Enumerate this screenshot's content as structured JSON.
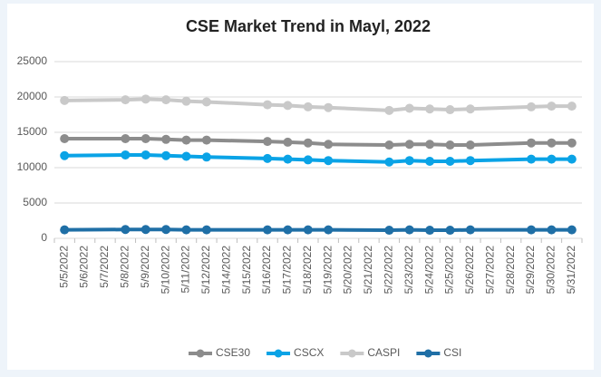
{
  "chart_data": {
    "type": "line",
    "title": "CSE Market Trend in Mayl, 2022",
    "categories": [
      "5/5/2022",
      "5/6/2022",
      "5/7/2022",
      "5/8/2022",
      "5/9/2022",
      "5/10/2022",
      "5/11/2022",
      "5/12/2022",
      "5/14/2022",
      "5/15/2022",
      "5/16/2022",
      "5/17/2022",
      "5/18/2022",
      "5/19/2022",
      "5/20/2022",
      "5/21/2022",
      "5/22/2022",
      "5/23/2022",
      "5/24/2022",
      "5/25/2022",
      "5/26/2022",
      "5/27/2022",
      "5/28/2022",
      "5/29/2022",
      "5/30/2022",
      "5/31/2022"
    ],
    "series": [
      {
        "name": "CSE30",
        "color": "#8c8c8c",
        "values": [
          14100,
          null,
          null,
          14100,
          14100,
          14000,
          13900,
          13900,
          null,
          null,
          13700,
          13600,
          13500,
          13300,
          null,
          null,
          13200,
          13300,
          13300,
          13200,
          13200,
          null,
          null,
          13500,
          13500,
          13500
        ]
      },
      {
        "name": "CSCX",
        "color": "#0aa3e6",
        "values": [
          11700,
          null,
          null,
          11800,
          11800,
          11700,
          11600,
          11500,
          null,
          null,
          11300,
          11200,
          11100,
          11000,
          null,
          null,
          10800,
          11000,
          10900,
          10900,
          11000,
          null,
          null,
          11200,
          11200,
          11200
        ]
      },
      {
        "name": "CASPI",
        "color": "#c9c9c9",
        "values": [
          19500,
          null,
          null,
          19600,
          19700,
          19600,
          19400,
          19300,
          null,
          null,
          18900,
          18800,
          18600,
          18500,
          null,
          null,
          18100,
          18400,
          18300,
          18200,
          18300,
          null,
          null,
          18600,
          18700,
          18700
        ]
      },
      {
        "name": "CSI",
        "color": "#1f6fa6",
        "values": [
          1200,
          null,
          null,
          1250,
          1250,
          1250,
          1200,
          1200,
          null,
          null,
          1200,
          1200,
          1200,
          1200,
          null,
          null,
          1150,
          1200,
          1150,
          1150,
          1200,
          null,
          null,
          1200,
          1200,
          1200
        ]
      }
    ],
    "ylim": [
      0,
      25000
    ],
    "yticks": [
      0,
      5000,
      10000,
      15000,
      20000,
      25000
    ],
    "grid": true,
    "connect_gaps": true,
    "legend": "bottom"
  }
}
